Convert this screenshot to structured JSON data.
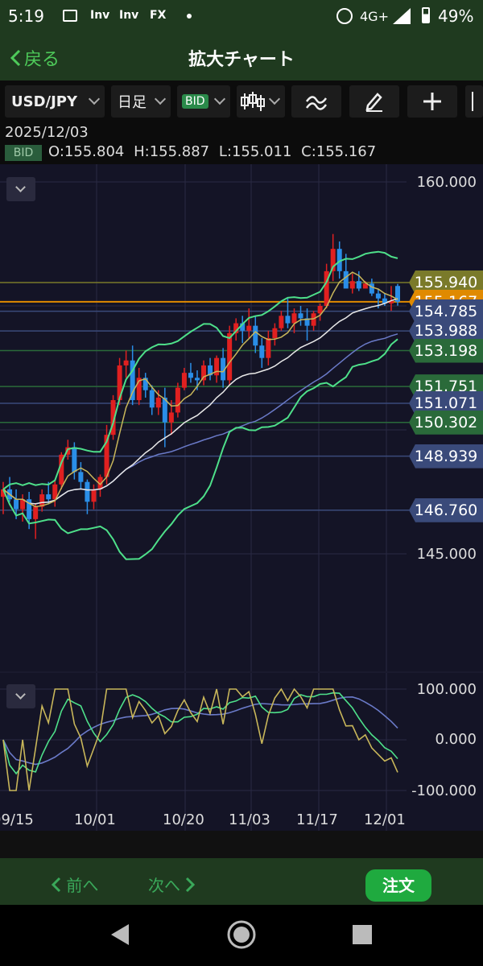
{
  "status": {
    "time": "5:19",
    "notif_icons": [
      "Inv",
      "Inv",
      "FX"
    ],
    "network": "4G+",
    "battery": "49%"
  },
  "appbar": {
    "back_label": "戻る",
    "title": "拡大チャート"
  },
  "toolbar": {
    "symbol": "USD/JPY",
    "period": "日足",
    "price_type": "BID"
  },
  "info": {
    "date": "2025/12/03",
    "tag": "BID",
    "open": "O:155.804",
    "high": "H:155.887",
    "low": "L:155.011",
    "close": "C:155.167"
  },
  "axis": {
    "price_labels": [
      "160.000",
      "145.000"
    ],
    "osc_labels": [
      "100.000",
      "0.000",
      "-100.000"
    ],
    "x_labels": [
      "09/15",
      "10/01",
      "10/20",
      "11/03",
      "11/17",
      "12/01"
    ]
  },
  "price_tags": [
    {
      "text": "155.940",
      "color": "#7a7a2a"
    },
    {
      "text": "155.167",
      "color": "#e08a00"
    },
    {
      "text": "154.785",
      "color": "#3a4a7a"
    },
    {
      "text": "153.988",
      "color": "#3a4a7a"
    },
    {
      "text": "153.198",
      "color": "#2a6a3a"
    },
    {
      "text": "151.751",
      "color": "#2a6a3a"
    },
    {
      "text": "151.071",
      "color": "#3a4a7a"
    },
    {
      "text": "150.302",
      "color": "#2a6a3a"
    },
    {
      "text": "148.939",
      "color": "#3a4a7a"
    },
    {
      "text": "146.760",
      "color": "#3a4a7a"
    }
  ],
  "bottom": {
    "prev": "前へ",
    "next": "次へ",
    "order": "注文"
  },
  "colors": {
    "up": "#e02020",
    "down": "#2a8ee8",
    "bb": "#4ee08a",
    "ma_short": "#c8b65a",
    "ma_mid": "#e8e8e8",
    "ma_long": "#6a7ac8"
  },
  "chart_data": {
    "type": "line",
    "symbol": "USD/JPY",
    "ylim": [
      143.5,
      160.5
    ],
    "ticks": [
      "160.000",
      "145.000"
    ],
    "x": [
      "09/15",
      "10/01",
      "10/20",
      "11/03",
      "11/17",
      "12/01"
    ],
    "candles_ohlc": [
      [
        147.3,
        147.9,
        146.6,
        147.6
      ],
      [
        147.6,
        148.1,
        147.1,
        147.2
      ],
      [
        147.2,
        147.6,
        146.4,
        146.8
      ],
      [
        146.8,
        147.4,
        146.3,
        147.2
      ],
      [
        147.2,
        147.5,
        146.0,
        146.4
      ],
      [
        146.4,
        147.0,
        145.6,
        146.9
      ],
      [
        146.9,
        147.6,
        146.7,
        147.4
      ],
      [
        147.4,
        147.9,
        147.0,
        147.2
      ],
      [
        147.2,
        148.0,
        146.9,
        147.8
      ],
      [
        147.8,
        149.1,
        147.6,
        149.0
      ],
      [
        149.0,
        149.6,
        148.8,
        149.3
      ],
      [
        149.3,
        149.5,
        148.0,
        148.3
      ],
      [
        148.3,
        148.7,
        147.6,
        147.9
      ],
      [
        147.9,
        148.0,
        146.6,
        147.1
      ],
      [
        147.1,
        147.8,
        146.8,
        147.6
      ],
      [
        147.6,
        148.2,
        147.3,
        148.1
      ],
      [
        148.1,
        150.2,
        147.8,
        149.8
      ],
      [
        149.8,
        151.4,
        149.6,
        151.2
      ],
      [
        151.2,
        152.9,
        151.0,
        152.6
      ],
      [
        152.6,
        153.2,
        152.1,
        152.8
      ],
      [
        152.8,
        153.4,
        151.0,
        151.2
      ],
      [
        151.2,
        152.5,
        151.0,
        152.1
      ],
      [
        152.1,
        152.3,
        151.3,
        151.6
      ],
      [
        151.6,
        151.8,
        150.6,
        150.9
      ],
      [
        150.9,
        151.6,
        150.6,
        151.3
      ],
      [
        151.3,
        151.7,
        149.3,
        150.3
      ],
      [
        150.3,
        151.2,
        149.8,
        150.7
      ],
      [
        150.7,
        151.9,
        150.5,
        151.7
      ],
      [
        151.7,
        152.5,
        151.6,
        152.3
      ],
      [
        152.3,
        152.7,
        151.9,
        152.1
      ],
      [
        152.1,
        152.4,
        151.6,
        152.0
      ],
      [
        152.0,
        152.8,
        151.8,
        152.6
      ],
      [
        152.6,
        152.9,
        152.0,
        152.2
      ],
      [
        152.2,
        153.0,
        151.9,
        152.9
      ],
      [
        152.9,
        153.3,
        151.7,
        152.0
      ],
      [
        152.0,
        154.2,
        151.8,
        153.9
      ],
      [
        153.9,
        154.5,
        153.6,
        154.3
      ],
      [
        154.3,
        154.6,
        153.5,
        154.0
      ],
      [
        154.0,
        154.9,
        153.7,
        154.2
      ],
      [
        154.2,
        154.6,
        153.1,
        153.4
      ],
      [
        153.4,
        153.7,
        152.5,
        152.9
      ],
      [
        152.9,
        154.0,
        152.6,
        153.7
      ],
      [
        153.7,
        154.3,
        153.4,
        154.1
      ],
      [
        154.1,
        154.8,
        154.0,
        154.6
      ],
      [
        154.6,
        155.3,
        154.1,
        154.3
      ],
      [
        154.3,
        154.9,
        153.9,
        154.7
      ],
      [
        154.7,
        155.0,
        154.2,
        154.5
      ],
      [
        154.5,
        154.9,
        153.6,
        154.2
      ],
      [
        154.2,
        154.8,
        154.0,
        154.7
      ],
      [
        154.7,
        155.1,
        154.4,
        155.0
      ],
      [
        155.0,
        156.7,
        154.9,
        156.4
      ],
      [
        156.4,
        157.9,
        156.0,
        157.3
      ],
      [
        157.3,
        157.6,
        156.1,
        156.4
      ],
      [
        156.4,
        157.1,
        155.9,
        155.7
      ],
      [
        155.7,
        156.3,
        155.5,
        156.0
      ],
      [
        156.0,
        156.4,
        155.6,
        155.7
      ],
      [
        155.7,
        156.0,
        155.8,
        155.9
      ],
      [
        155.9,
        156.1,
        155.4,
        155.5
      ],
      [
        155.5,
        155.7,
        154.9,
        155.3
      ],
      [
        155.3,
        155.5,
        155.0,
        155.1
      ],
      [
        155.1,
        155.8,
        154.8,
        155.2
      ],
      [
        155.804,
        155.887,
        155.011,
        155.167
      ]
    ],
    "horizontal_levels": [
      155.94,
      155.167,
      154.785,
      153.988,
      153.198,
      151.751,
      151.071,
      150.302,
      148.939,
      146.76
    ],
    "oscillator": {
      "ylim": [
        -100,
        100
      ],
      "ticks": [
        "100.000",
        "0.000",
        "-100.000"
      ]
    }
  }
}
